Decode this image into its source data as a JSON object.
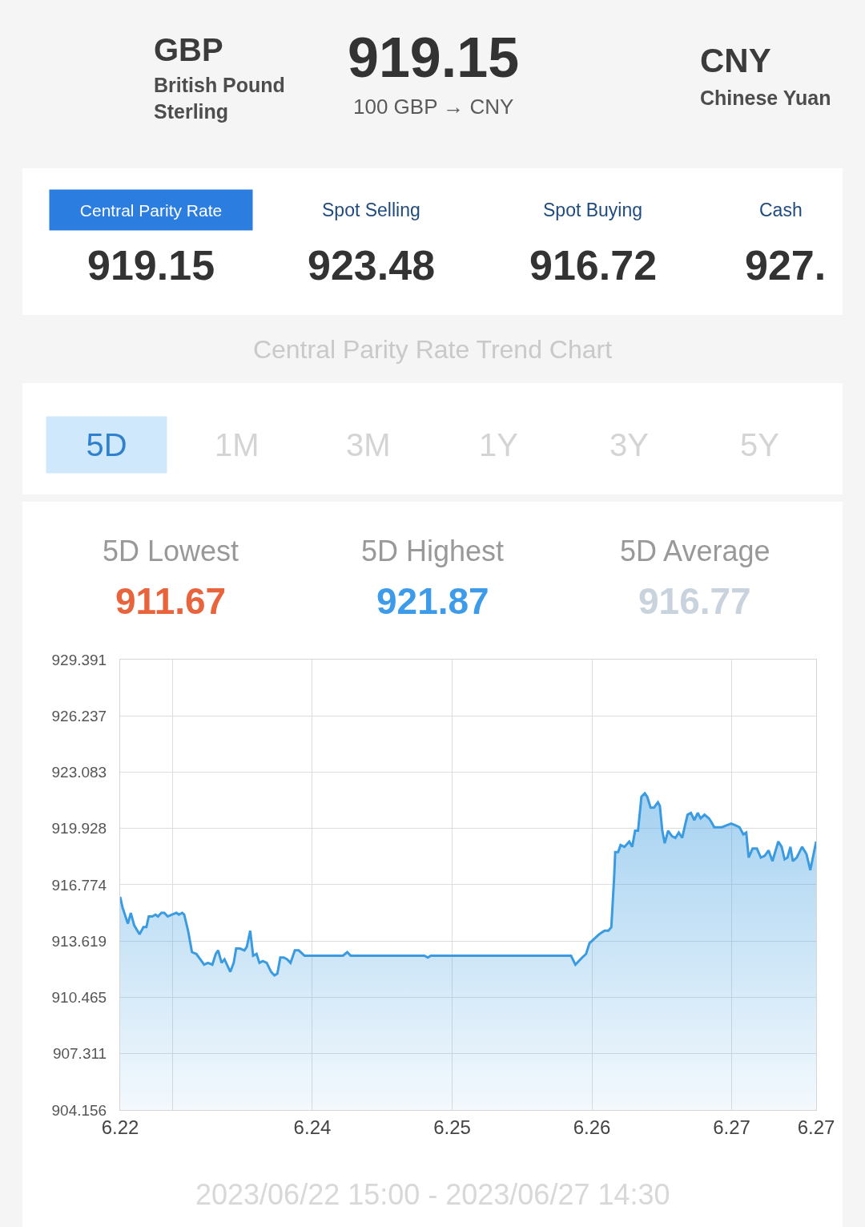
{
  "chart_data": {
    "type": "area",
    "title": "Central Parity Rate Trend Chart",
    "annotations": [
      "GBP",
      "British Pound Sterling",
      "919.15",
      "100 GBP → CNY",
      "CNY",
      "Chinese Yuan",
      "Central Parity Rate",
      "919.15",
      "Spot Selling",
      "923.48",
      "Spot Buying",
      "916.72",
      "Cash",
      "927.",
      "5D",
      "1M",
      "3M",
      "1Y",
      "3Y",
      "5Y",
      "5D Lowest",
      "911.67",
      "5D Highest",
      "921.87",
      "5D Average",
      "916.77",
      "2023/06/22 15:00 - 2023/06/27 14:30"
    ],
    "x": [
      "2023-06-22T15:00",
      "2023-06-22T15:25",
      "2023-06-22T16:20",
      "2023-06-22T16:50",
      "2023-06-22T17:25",
      "2023-06-22T18:20",
      "2023-06-22T19:00",
      "2023-06-22T19:30",
      "2023-06-22T19:55",
      "2023-06-22T20:30",
      "2023-06-22T21:05",
      "2023-06-22T21:30",
      "2023-06-22T22:05",
      "2023-06-22T22:35",
      "2023-06-22T23:10",
      "2023-06-22T23:50",
      "2023-06-23T00:40",
      "2023-06-23T01:05",
      "2023-06-23T01:40",
      "2023-06-23T02:00",
      "2023-06-23T02:40",
      "2023-06-23T03:20",
      "2023-06-23T04:05",
      "2023-06-23T04:45",
      "2023-06-23T05:25",
      "2023-06-23T06:05",
      "2023-06-23T06:50",
      "2023-06-23T07:25",
      "2023-06-23T07:50",
      "2023-06-23T08:25",
      "2023-06-23T08:55",
      "2023-06-23T09:55",
      "2023-06-23T10:30",
      "2023-06-23T10:55",
      "2023-06-23T11:35",
      "2023-06-23T12:20",
      "2023-06-23T12:45",
      "2023-06-23T13:20",
      "2023-06-23T13:50",
      "2023-06-23T14:25",
      "2023-06-23T14:55",
      "2023-06-23T15:30",
      "2023-06-23T16:10",
      "2023-06-23T16:55",
      "2023-06-23T17:30",
      "2023-06-23T18:00",
      "2023-06-23T18:30",
      "2023-06-23T19:05",
      "2023-06-23T19:40",
      "2023-06-23T20:15",
      "2023-06-23T21:00",
      "2023-06-23T21:40",
      "2023-06-23T22:40",
      "2023-06-24T05:15",
      "2023-06-24T06:00",
      "2023-06-24T06:35",
      "2023-06-24T19:15",
      "2023-06-24T19:50",
      "2023-06-24T20:20",
      "2023-06-25T20:25",
      "2023-06-25T21:10",
      "2023-06-25T22:20",
      "2023-06-25T23:00",
      "2023-06-25T23:35",
      "2023-06-26T00:35",
      "2023-06-26T01:15",
      "2023-06-26T02:10",
      "2023-06-26T02:50",
      "2023-06-26T03:20",
      "2023-06-26T03:50",
      "2023-06-26T04:00",
      "2023-06-26T04:30",
      "2023-06-26T04:55",
      "2023-06-26T05:35",
      "2023-06-26T06:25",
      "2023-06-26T06:55",
      "2023-06-26T07:25",
      "2023-06-26T07:55",
      "2023-06-26T08:30",
      "2023-06-26T09:05",
      "2023-06-26T09:30",
      "2023-06-26T10:05",
      "2023-06-26T10:40",
      "2023-06-26T11:20",
      "2023-06-26T11:40",
      "2023-06-26T12:05",
      "2023-06-26T12:30",
      "2023-06-26T13:05",
      "2023-06-26T13:45",
      "2023-06-26T14:20",
      "2023-06-26T14:55",
      "2023-06-26T15:30",
      "2023-06-26T15:55",
      "2023-06-26T16:25",
      "2023-06-26T17:00",
      "2023-06-26T17:35",
      "2023-06-26T18:10",
      "2023-06-26T18:40",
      "2023-06-26T19:20",
      "2023-06-26T20:05",
      "2023-06-26T20:30",
      "2023-06-26T21:00",
      "2023-06-26T21:40",
      "2023-06-26T22:20",
      "2023-06-26T23:05",
      "2023-06-26T23:55",
      "2023-06-27T00:40",
      "2023-06-27T01:20",
      "2023-06-27T02:00",
      "2023-06-27T02:30",
      "2023-06-27T02:55",
      "2023-06-27T03:35",
      "2023-06-27T04:20",
      "2023-06-27T05:00",
      "2023-06-27T05:40",
      "2023-06-27T06:20",
      "2023-06-27T07:00",
      "2023-06-27T08:00",
      "2023-06-27T08:35",
      "2023-06-27T09:05",
      "2023-06-27T09:35",
      "2023-06-27T10:05",
      "2023-06-27T10:30",
      "2023-06-27T11:10",
      "2023-06-27T12:05",
      "2023-06-27T12:50",
      "2023-06-27T13:30",
      "2023-06-27T14:30"
    ],
    "values": [
      916.1,
      915.5,
      914.6,
      915.2,
      914.5,
      914.0,
      914.4,
      914.4,
      915.0,
      915.0,
      915.1,
      915.0,
      915.2,
      915.2,
      915.0,
      915.1,
      915.2,
      915.1,
      915.2,
      915.1,
      914.2,
      913.0,
      912.9,
      912.6,
      912.3,
      912.4,
      912.3,
      912.9,
      913.1,
      912.4,
      912.6,
      911.9,
      912.4,
      913.2,
      913.2,
      913.1,
      913.3,
      914.2,
      912.8,
      912.9,
      912.4,
      912.5,
      912.4,
      911.9,
      911.7,
      911.8,
      912.7,
      912.7,
      912.6,
      912.4,
      913.1,
      913.1,
      912.8,
      912.8,
      913.0,
      912.8,
      912.8,
      912.7,
      912.8,
      912.8,
      912.3,
      912.7,
      912.9,
      913.5,
      913.8,
      914.0,
      914.2,
      914.2,
      914.4,
      917.3,
      918.6,
      918.6,
      919.0,
      918.9,
      919.2,
      918.9,
      919.8,
      919.8,
      921.7,
      921.9,
      921.7,
      921.1,
      921.1,
      921.4,
      921.2,
      919.8,
      919.1,
      919.8,
      919.5,
      919.4,
      919.7,
      919.4,
      920.0,
      920.7,
      920.8,
      920.4,
      920.8,
      920.5,
      920.7,
      920.5,
      920.3,
      920.0,
      920.0,
      920.0,
      920.1,
      920.2,
      920.1,
      920.0,
      919.6,
      919.7,
      918.3,
      918.8,
      918.8,
      918.3,
      918.4,
      918.7,
      918.1,
      919.2,
      918.9,
      918.2,
      918.3,
      918.9,
      918.1,
      918.3,
      918.9,
      918.5,
      917.6,
      919.2
    ],
    "color": "#3a9be0",
    "xlim": [
      "2023-06-22T15:00",
      "2023-06-27T14:30"
    ],
    "xticks": [
      {
        "value": "2023-06-22T15:00",
        "label": "6.22"
      },
      {
        "value": "2023-06-23T00:00",
        "label": null
      },
      {
        "value": "2023-06-24T00:00",
        "label": "6.24"
      },
      {
        "value": "2023-06-25T00:00",
        "label": "6.25"
      },
      {
        "value": "2023-06-26T00:00",
        "label": "6.26"
      },
      {
        "value": "2023-06-27T00:00",
        "label": "6.27"
      },
      {
        "value": "2023-06-27T14:30",
        "label": "6.27"
      }
    ],
    "ylim": [
      904.156,
      929.391
    ],
    "yticks": [
      904.156,
      907.311,
      910.465,
      913.619,
      916.774,
      919.928,
      923.083,
      926.237,
      929.391
    ],
    "grid": true
  }
}
